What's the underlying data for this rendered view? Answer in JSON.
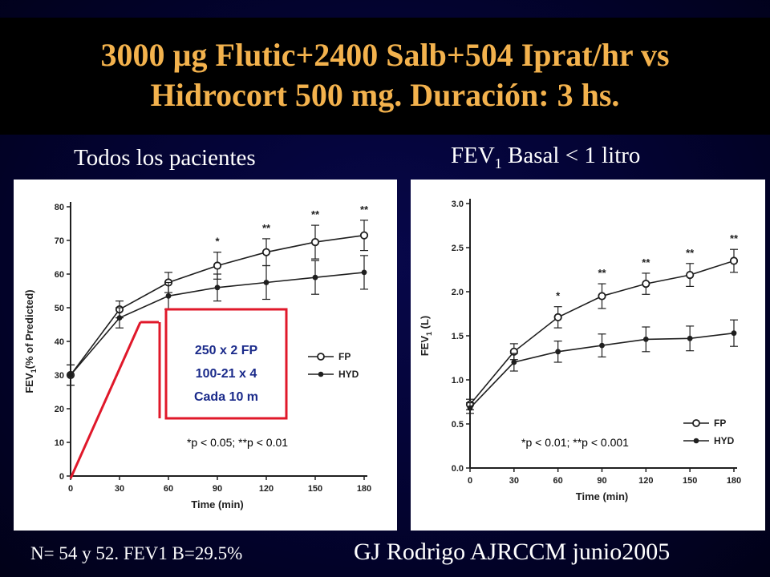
{
  "slide": {
    "title_line1": "3000 µg Flutic+2400 Salb+504 Iprat/hr vs",
    "title_line2": "Hidrocort 500 mg. Duración: 3 hs.",
    "left_heading": "Todos los pacientes",
    "right_heading_prefix": "FEV",
    "right_heading_sub": "1",
    "right_heading_suffix": " Basal < 1 litro",
    "footer_left": "N= 54 y 52.  FEV1 B=29.5%",
    "footer_right": "GJ Rodrigo AJRCCM junio2005",
    "colors": {
      "title": "#f3b24d",
      "callout": "#e0182a",
      "background": "#030330"
    }
  },
  "callout": {
    "line1": "250 x 2 FP",
    "line2": "100-21 x 4",
    "line3": "Cada 10 m"
  },
  "chart_data": [
    {
      "type": "line",
      "ylabel_prefix": "FEV",
      "ylabel_sub": "1",
      "ylabel_suffix": "(% of Predicted)",
      "xlabel": "Time (min)",
      "x": [
        0,
        30,
        60,
        90,
        120,
        150,
        180
      ],
      "xticks": [
        "0",
        "30",
        "60",
        "90",
        "120",
        "150",
        "180"
      ],
      "ylim": [
        0,
        80
      ],
      "yticks": [
        "0",
        "10",
        "20",
        "30",
        "40",
        "50",
        "60",
        "70",
        "80"
      ],
      "series": [
        {
          "name": "FP",
          "marker": "open-circle",
          "values": [
            30,
            49.5,
            57.5,
            62.5,
            66.5,
            69.5,
            71.5
          ],
          "err": [
            3,
            2.5,
            3,
            4,
            4,
            5,
            4.5
          ]
        },
        {
          "name": "HYD",
          "marker": "filled-dot",
          "values": [
            30,
            47,
            53.5,
            56,
            57.5,
            59,
            60.5
          ],
          "err": [
            3,
            3,
            4,
            4,
            5,
            5,
            5
          ]
        }
      ],
      "significance": [
        "",
        "",
        "",
        "*",
        "**",
        "**",
        "**"
      ],
      "note": "*p < 0.05; **p < 0.01",
      "legend": "right"
    },
    {
      "type": "line",
      "ylabel_prefix": "FEV",
      "ylabel_sub": "1",
      "ylabel_suffix": " (L)",
      "xlabel": "Time (min)",
      "x": [
        0,
        30,
        60,
        90,
        120,
        150,
        180
      ],
      "xticks": [
        "0",
        "30",
        "60",
        "90",
        "120",
        "150",
        "180"
      ],
      "ylim": [
        0,
        3.0
      ],
      "yticks": [
        "0.0",
        "0.5",
        "1.0",
        "1.5",
        "2.0",
        "2.5",
        "3.0"
      ],
      "series": [
        {
          "name": "FP",
          "marker": "open-circle",
          "values": [
            0.72,
            1.32,
            1.71,
            1.95,
            2.09,
            2.19,
            2.35
          ],
          "err": [
            0.06,
            0.09,
            0.12,
            0.14,
            0.12,
            0.13,
            0.13
          ]
        },
        {
          "name": "HYD",
          "marker": "filled-dot",
          "values": [
            0.68,
            1.2,
            1.32,
            1.39,
            1.46,
            1.47,
            1.53
          ],
          "err": [
            0.06,
            0.1,
            0.12,
            0.13,
            0.14,
            0.14,
            0.15
          ]
        }
      ],
      "significance": [
        "",
        "",
        "*",
        "**",
        "**",
        "**",
        "**"
      ],
      "note": "*p < 0.01; **p < 0.001",
      "legend": "bottom-right"
    }
  ]
}
